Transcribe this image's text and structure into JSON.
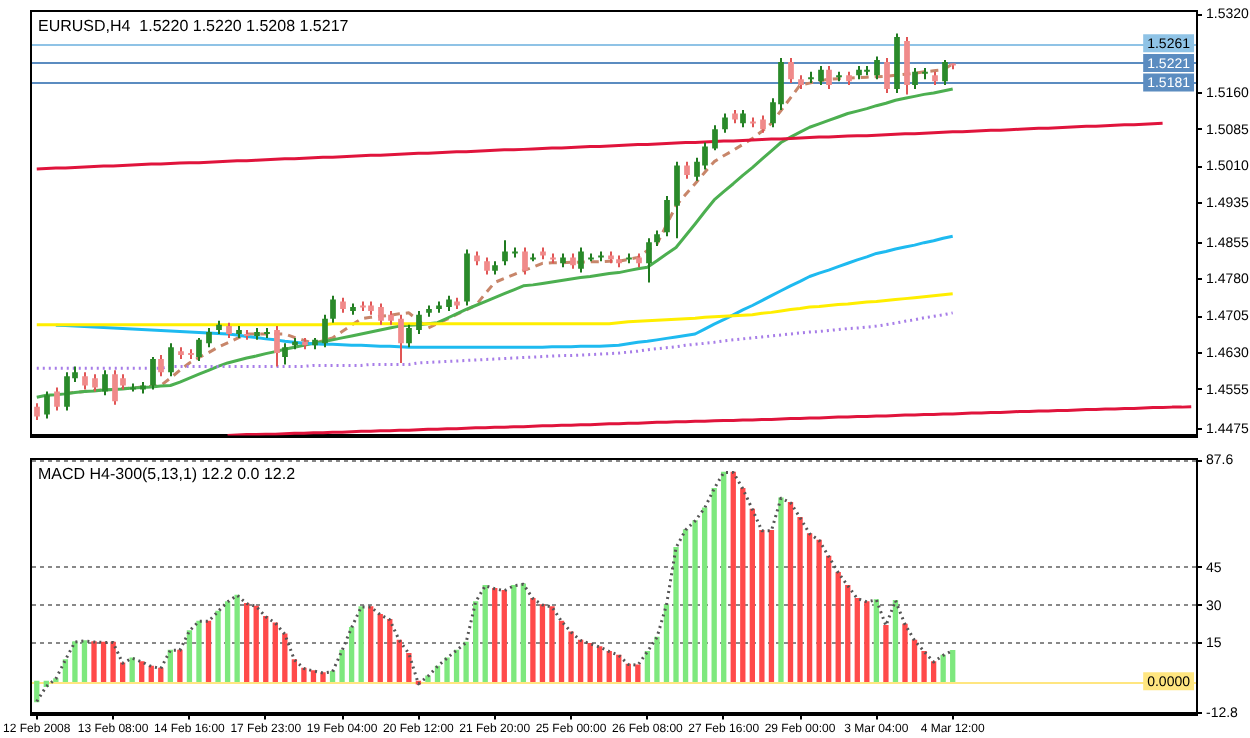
{
  "chart_data": [
    {
      "type": "candlestick",
      "title": "EURUSD,H4  1.5220 1.5220 1.5208 1.5217",
      "categories": [
        null,
        null,
        null,
        null,
        null,
        null,
        null,
        null,
        null,
        null,
        null,
        null,
        null,
        null,
        null,
        null,
        null,
        null,
        null,
        null,
        null,
        null,
        null,
        null,
        null,
        null,
        null,
        null,
        null,
        null,
        null,
        null,
        null,
        null,
        null,
        null,
        null,
        null,
        null,
        null,
        null,
        null,
        null,
        null,
        null,
        null,
        null,
        null,
        null,
        null,
        null,
        null,
        null,
        null,
        null,
        null,
        null,
        null,
        null,
        null,
        null,
        null,
        null,
        null,
        null,
        null,
        null,
        null,
        null,
        null,
        null,
        null,
        null,
        null,
        null,
        null,
        null,
        null,
        null,
        null,
        null,
        null,
        null,
        null,
        null,
        null,
        null,
        null,
        null,
        null,
        null,
        null,
        null,
        null,
        null,
        null,
        null,
        null,
        null,
        null,
        null,
        null,
        null,
        null,
        null,
        null,
        null,
        null,
        null,
        null,
        null,
        null,
        null,
        null,
        null,
        null,
        null,
        null,
        null,
        null,
        null,
        null
      ],
      "ohlc": [
        [
          1.4521,
          1.4528,
          1.4494,
          1.4501
        ],
        [
          1.4505,
          1.4552,
          1.4497,
          1.4544
        ],
        [
          1.4552,
          1.456,
          1.4513,
          1.4521
        ],
        [
          1.4521,
          1.4591,
          1.4513,
          1.4583
        ],
        [
          1.4579,
          1.4603,
          1.4571,
          1.4591
        ],
        [
          1.4583,
          1.4591,
          1.4556,
          1.4564
        ],
        [
          1.4579,
          1.4587,
          1.4552,
          1.456
        ],
        [
          1.4552,
          1.4595,
          1.4544,
          1.4587
        ],
        [
          1.4587,
          1.4595,
          1.4525,
          1.4532
        ],
        [
          1.4579,
          1.4587,
          1.4556,
          1.4564
        ],
        [
          1.456,
          1.4568,
          1.4552,
          1.456
        ],
        [
          1.4556,
          1.4571,
          1.4548,
          1.4564
        ],
        [
          1.4564,
          1.4622,
          1.4556,
          1.4618
        ],
        [
          1.4618,
          1.4626,
          1.4583,
          1.4591
        ],
        [
          1.4591,
          1.465,
          1.4583,
          1.4642
        ],
        [
          1.4634,
          1.4642,
          1.4618,
          1.4626
        ],
        [
          1.463,
          1.4638,
          1.4618,
          1.4626
        ],
        [
          1.4622,
          1.4661,
          1.4614,
          1.4657
        ],
        [
          1.465,
          1.4681,
          1.4642,
          1.4673
        ],
        [
          1.4677,
          1.4696,
          1.4669,
          1.4688
        ],
        [
          1.4685,
          1.4692,
          1.4661,
          1.4669
        ],
        [
          1.4669,
          1.4685,
          1.4661,
          1.4677
        ],
        [
          1.4669,
          1.4677,
          1.4657,
          1.4665
        ],
        [
          1.4665,
          1.4681,
          1.4657,
          1.4673
        ],
        [
          1.4669,
          1.4681,
          1.4661,
          1.4673
        ],
        [
          1.4677,
          1.4685,
          1.4603,
          1.463
        ],
        [
          1.4622,
          1.465,
          1.4607,
          1.4642
        ],
        [
          1.4646,
          1.4661,
          1.4638,
          1.4653
        ],
        [
          1.4653,
          1.4661,
          1.4638,
          1.4646
        ],
        [
          1.4646,
          1.4661,
          1.4638,
          1.4657
        ],
        [
          1.465,
          1.4708,
          1.4642,
          1.47
        ],
        [
          1.47,
          1.4747,
          1.4692,
          1.4739
        ],
        [
          1.4735,
          1.4743,
          1.4712,
          1.472
        ],
        [
          1.4716,
          1.4731,
          1.4708,
          1.4724
        ],
        [
          1.4727,
          1.4735,
          1.4716,
          1.4724
        ],
        [
          1.4727,
          1.4735,
          1.4708,
          1.4716
        ],
        [
          1.4724,
          1.4731,
          1.4688,
          1.4696
        ],
        [
          1.4708,
          1.4716,
          1.4688,
          1.4696
        ],
        [
          1.47,
          1.4708,
          1.461,
          1.465
        ],
        [
          1.465,
          1.4688,
          1.4642,
          1.4681
        ],
        [
          1.4677,
          1.4716,
          1.4669,
          1.4708
        ],
        [
          1.4712,
          1.4727,
          1.4704,
          1.472
        ],
        [
          1.472,
          1.4735,
          1.4712,
          1.4727
        ],
        [
          1.4724,
          1.4747,
          1.4716,
          1.4739
        ],
        [
          1.4735,
          1.4743,
          1.472,
          1.4727
        ],
        [
          1.4735,
          1.4841,
          1.4727,
          1.4833
        ],
        [
          1.4829,
          1.4837,
          1.4809,
          1.4817
        ],
        [
          1.4817,
          1.4825,
          1.479,
          1.4798
        ],
        [
          1.4798,
          1.4817,
          1.479,
          1.4809
        ],
        [
          1.4817,
          1.486,
          1.4809,
          1.4837
        ],
        [
          1.4833,
          1.4845,
          1.4825,
          1.4837
        ],
        [
          1.4837,
          1.4845,
          1.479,
          1.4798
        ],
        [
          1.4825,
          1.4833,
          1.4817,
          1.4825
        ],
        [
          1.4837,
          1.4845,
          1.4821,
          1.4829
        ],
        [
          1.4825,
          1.4833,
          1.4813,
          1.4821
        ],
        [
          1.4813,
          1.4833,
          1.4805,
          1.4825
        ],
        [
          1.4825,
          1.4833,
          1.4802,
          1.4809
        ],
        [
          1.4802,
          1.4845,
          1.4794,
          1.4837
        ],
        [
          1.4825,
          1.4833,
          1.4817,
          1.4825
        ],
        [
          1.4825,
          1.4837,
          1.4817,
          1.4829
        ],
        [
          1.4829,
          1.4837,
          1.4813,
          1.4821
        ],
        [
          1.4821,
          1.4829,
          1.4805,
          1.4813
        ],
        [
          1.4821,
          1.4833,
          1.4813,
          1.4825
        ],
        [
          1.4825,
          1.4833,
          1.4805,
          1.4813
        ],
        [
          1.4813,
          1.4864,
          1.4774,
          1.4856
        ],
        [
          1.4856,
          1.488,
          1.4848,
          1.4872
        ],
        [
          1.4876,
          1.495,
          1.4868,
          1.4942
        ],
        [
          1.493,
          1.502,
          1.4864,
          1.5012
        ],
        [
          1.5012,
          1.502,
          1.4985,
          1.4993
        ],
        [
          1.4989,
          1.5028,
          1.4981,
          1.502
        ],
        [
          1.5012,
          1.5059,
          1.5004,
          1.5051
        ],
        [
          1.5047,
          1.5094,
          1.5043,
          1.5086
        ],
        [
          1.5086,
          1.5118,
          1.5079,
          1.511
        ],
        [
          1.5118,
          1.5125,
          1.5098,
          1.5106
        ],
        [
          1.5098,
          1.5125,
          1.509,
          1.5118
        ],
        [
          1.5102,
          1.511,
          1.509,
          1.5098
        ],
        [
          1.5106,
          1.5114,
          1.5079,
          1.5086
        ],
        [
          1.5098,
          1.5149,
          1.509,
          1.5141
        ],
        [
          1.5137,
          1.5231,
          1.5125,
          1.5223
        ],
        [
          1.5223,
          1.5231,
          1.518,
          1.5188
        ],
        [
          1.5188,
          1.5196,
          1.5168,
          1.5176
        ],
        [
          1.5188,
          1.5203,
          1.518,
          1.5192
        ],
        [
          1.5184,
          1.5215,
          1.5176,
          1.5207
        ],
        [
          1.5207,
          1.5215,
          1.5168,
          1.5176
        ],
        [
          1.5192,
          1.5203,
          1.5184,
          1.5196
        ],
        [
          1.5196,
          1.5203,
          1.5176,
          1.5184
        ],
        [
          1.5196,
          1.5215,
          1.5188,
          1.5207
        ],
        [
          1.5203,
          1.5215,
          1.5196,
          1.5207
        ],
        [
          1.5196,
          1.5234,
          1.5188,
          1.5227
        ],
        [
          1.5223,
          1.5231,
          1.516,
          1.5168
        ],
        [
          1.5168,
          1.5281,
          1.516,
          1.5274
        ],
        [
          1.5266,
          1.5274,
          1.5157,
          1.5176
        ],
        [
          1.5176,
          1.5211,
          1.5168,
          1.5203
        ],
        [
          1.5199,
          1.5211,
          1.5188,
          1.5203
        ],
        [
          1.5196,
          1.5203,
          1.5176,
          1.5184
        ],
        [
          1.5184,
          1.5227,
          1.5176,
          1.5223
        ],
        [
          1.522,
          1.522,
          1.5208,
          1.5217
        ],
        null,
        null,
        null,
        null,
        null,
        null,
        null,
        null,
        null,
        null,
        null,
        null,
        null,
        null,
        null,
        null,
        null,
        null,
        null,
        null,
        null,
        null,
        null,
        null,
        null
      ],
      "series": [
        {
          "type": "line",
          "color": "#ffee00",
          "line_style": "solid",
          "values": [
            1.4688,
            1.4688,
            1.4688,
            1.4688,
            1.4688,
            1.4688,
            1.4688,
            1.4688,
            1.4688,
            1.4688,
            1.4688,
            1.4688,
            1.4688,
            1.4688,
            1.4688,
            1.4688,
            1.4688,
            1.4688,
            1.4688,
            1.4688,
            1.4688,
            1.4688,
            1.4688,
            1.4688,
            1.4688,
            1.4688,
            1.4688,
            1.4688,
            1.4688,
            1.4688,
            1.4688,
            1.469,
            1.469,
            1.469,
            1.469,
            1.469,
            1.469,
            1.469,
            1.469,
            1.469,
            1.469,
            1.469,
            1.469,
            1.469,
            1.469,
            1.469,
            1.469,
            1.469,
            1.469,
            1.469,
            1.469,
            1.469,
            1.469,
            1.469,
            1.469,
            1.469,
            1.469,
            1.469,
            1.469,
            1.469,
            1.469,
            1.4692,
            1.4694,
            1.4695,
            1.4696,
            1.4697,
            1.4698,
            1.4699,
            1.47,
            1.4701,
            1.4703,
            1.4704,
            1.4705,
            1.4706,
            1.4707,
            1.4708,
            1.4711,
            1.4713,
            1.4716,
            1.4719,
            1.4721,
            1.4724,
            1.4725,
            1.4727,
            1.4729,
            1.473,
            1.4732,
            1.4734,
            1.4735,
            1.4737,
            1.4739,
            1.4741,
            1.4743,
            1.4745,
            1.4747,
            1.4749,
            1.4751,
            null,
            null,
            null,
            null,
            null,
            null,
            null,
            null,
            null,
            null,
            null,
            null,
            null,
            null,
            null,
            null,
            null,
            null,
            null,
            null,
            null,
            null,
            null,
            null,
            null
          ]
        },
        {
          "type": "line",
          "color": "#1ebaf0",
          "line_style": "solid",
          "values": [
            null,
            null,
            1.4687,
            1.4686,
            1.4685,
            1.4684,
            1.4683,
            1.4682,
            1.4681,
            1.468,
            1.4679,
            1.4678,
            1.4677,
            1.4676,
            1.4675,
            1.4674,
            1.4673,
            1.4672,
            1.4671,
            1.467,
            1.4669,
            1.4667,
            1.4664,
            1.4662,
            1.4659,
            1.4657,
            1.4654,
            1.4652,
            1.465,
            1.4649,
            1.4648,
            1.4648,
            1.4647,
            1.4646,
            1.4646,
            1.4645,
            1.4644,
            1.4644,
            1.4643,
            1.4642,
            1.4642,
            1.4642,
            1.4642,
            1.4642,
            1.4642,
            1.4642,
            1.4642,
            1.4642,
            1.4642,
            1.4642,
            1.4642,
            1.4642,
            1.4642,
            1.4642,
            1.4643,
            1.4643,
            1.4643,
            1.4644,
            1.4644,
            1.4644,
            1.4645,
            1.4646,
            1.4649,
            1.4652,
            1.4654,
            1.4657,
            1.466,
            1.4663,
            1.4666,
            1.4669,
            1.4679,
            1.4689,
            1.4698,
            1.4708,
            1.4718,
            1.4727,
            1.4737,
            1.4747,
            1.4757,
            1.4767,
            1.4776,
            1.4786,
            1.4793,
            1.4799,
            1.4806,
            1.4813,
            1.482,
            1.4826,
            1.4833,
            1.4837,
            1.4842,
            1.4846,
            1.485,
            1.4855,
            1.4859,
            1.4864,
            1.4868,
            null,
            null,
            null,
            null,
            null,
            null,
            null,
            null,
            null,
            null,
            null,
            null,
            null,
            null,
            null,
            null,
            null,
            null,
            null,
            null,
            null,
            null,
            null,
            null,
            null
          ]
        },
        {
          "type": "line",
          "color": "#a77de8",
          "line_style": "dotted",
          "values": [
            1.4599,
            1.4599,
            1.4599,
            1.4599,
            1.4599,
            1.4599,
            1.4599,
            1.4599,
            1.4599,
            1.4599,
            1.4599,
            1.4599,
            1.4599,
            1.4599,
            1.4603,
            1.4603,
            1.4603,
            1.4603,
            1.4603,
            1.4603,
            1.4603,
            1.4603,
            1.4603,
            1.4603,
            1.4603,
            1.4603,
            1.4603,
            1.4603,
            1.4603,
            1.4605,
            1.4605,
            1.4605,
            1.4605,
            1.4605,
            1.4605,
            1.4607,
            1.4607,
            1.4607,
            1.4607,
            1.4607,
            1.461,
            1.4611,
            1.4612,
            1.4613,
            1.4614,
            1.4615,
            1.4616,
            1.4617,
            1.4618,
            1.4619,
            1.462,
            1.4621,
            1.4622,
            1.4623,
            1.4624,
            1.4625,
            1.4625,
            1.4626,
            1.4627,
            1.4628,
            1.4629,
            1.463,
            1.4632,
            1.4634,
            1.4637,
            1.4639,
            1.4641,
            1.4643,
            1.4646,
            1.4648,
            1.465,
            1.4652,
            1.4655,
            1.4657,
            1.4659,
            1.4661,
            1.4663,
            1.4665,
            1.4667,
            1.4669,
            1.4671,
            1.4673,
            1.4674,
            1.4676,
            1.4678,
            1.468,
            1.4681,
            1.4683,
            1.4685,
            1.4688,
            1.4691,
            1.4695,
            1.4698,
            1.4702,
            1.4705,
            1.4708,
            1.4712,
            null,
            null,
            null,
            null,
            null,
            null,
            null,
            null,
            null,
            null,
            null,
            null,
            null,
            null,
            null,
            null,
            null,
            null,
            null,
            null,
            null,
            null,
            null,
            null,
            null
          ]
        },
        {
          "type": "line",
          "color": "#e0143c",
          "line_style": "solid",
          "values": [
            1.5005,
            1.5006,
            1.5007,
            1.5007,
            1.5008,
            1.5009,
            1.501,
            1.5011,
            1.5011,
            1.5012,
            1.5013,
            1.5014,
            1.5015,
            1.5015,
            1.5016,
            1.5017,
            1.5018,
            1.5018,
            1.5019,
            1.502,
            1.5021,
            1.5022,
            1.5022,
            1.5023,
            1.5024,
            1.5025,
            1.5026,
            1.5026,
            1.5027,
            1.5028,
            1.5029,
            1.5029,
            1.503,
            1.5031,
            1.5032,
            1.5033,
            1.5033,
            1.5034,
            1.5035,
            1.5036,
            1.5037,
            1.5037,
            1.5038,
            1.5039,
            1.504,
            1.504,
            1.5041,
            1.5042,
            1.5043,
            1.5044,
            1.5044,
            1.5045,
            1.5046,
            1.5047,
            1.5048,
            1.5048,
            1.5049,
            1.505,
            1.5051,
            1.5051,
            1.5052,
            1.5053,
            1.5054,
            1.5055,
            1.5055,
            1.5056,
            1.5057,
            1.5058,
            1.5059,
            1.5059,
            1.506,
            1.5061,
            1.5062,
            1.5062,
            1.5063,
            1.5064,
            1.5065,
            1.5066,
            1.5066,
            1.5067,
            1.5068,
            1.5069,
            1.507,
            1.507,
            1.5071,
            1.5072,
            1.5073,
            1.5073,
            1.5074,
            1.5075,
            1.5076,
            1.5077,
            1.5077,
            1.5078,
            1.5079,
            1.508,
            1.5081,
            1.5081,
            1.5082,
            1.5083,
            1.5084,
            1.5084,
            1.5085,
            1.5086,
            1.5087,
            1.5088,
            1.5088,
            1.5089,
            1.509,
            1.5091,
            1.5092,
            1.5092,
            1.5093,
            1.5094,
            1.5095,
            1.5095,
            1.5096,
            1.5097,
            1.5098,
            null,
            null,
            null
          ]
        },
        {
          "type": "line",
          "color": "#e0143c",
          "line_style": "solid",
          "values": [
            null,
            null,
            null,
            null,
            null,
            null,
            null,
            null,
            null,
            null,
            null,
            null,
            null,
            null,
            null,
            null,
            null,
            null,
            null,
            null,
            1.4462,
            1.4463,
            1.4464,
            1.4464,
            1.4465,
            1.4465,
            1.4466,
            1.4467,
            1.4467,
            1.4468,
            1.4468,
            1.4469,
            1.4469,
            1.447,
            1.4471,
            1.4471,
            1.4472,
            1.4472,
            1.4473,
            1.4473,
            1.4474,
            1.4475,
            1.4475,
            1.4476,
            1.4476,
            1.4477,
            1.4478,
            1.4478,
            1.4479,
            1.4479,
            1.448,
            1.448,
            1.4481,
            1.4482,
            1.4482,
            1.4483,
            1.4483,
            1.4484,
            1.4484,
            1.4485,
            1.4486,
            1.4486,
            1.4487,
            1.4487,
            1.4488,
            1.4489,
            1.4489,
            1.449,
            1.449,
            1.4491,
            1.4491,
            1.4492,
            1.4493,
            1.4493,
            1.4494,
            1.4494,
            1.4495,
            1.4495,
            1.4496,
            1.4497,
            1.4497,
            1.4498,
            1.4498,
            1.4499,
            1.45,
            1.45,
            1.4501,
            1.4501,
            1.4502,
            1.4502,
            1.4503,
            1.4504,
            1.4504,
            1.4505,
            1.4505,
            1.4506,
            1.4506,
            1.4507,
            1.4508,
            1.4508,
            1.4509,
            1.4509,
            1.451,
            1.4511,
            1.4511,
            1.4512,
            1.4512,
            1.4513,
            1.4513,
            1.4514,
            1.4515,
            1.4515,
            1.4516,
            1.4516,
            1.4517,
            1.4517,
            1.4518,
            1.4519,
            1.4519,
            1.452,
            1.452,
            1.4521
          ]
        },
        {
          "type": "line",
          "color": "#4caf50",
          "line_style": "solid",
          "values": [
            1.454,
            1.4544,
            1.4545,
            1.4547,
            1.455,
            1.4552,
            1.4553,
            1.4555,
            1.4556,
            1.4557,
            1.4559,
            1.456,
            1.4561,
            1.4563,
            1.4564,
            1.4571,
            1.4579,
            1.4587,
            1.4595,
            1.4603,
            1.461,
            1.4615,
            1.462,
            1.4624,
            1.4629,
            1.4633,
            1.4638,
            1.4642,
            1.4646,
            1.465,
            1.4653,
            1.4657,
            1.4661,
            1.4665,
            1.4669,
            1.4673,
            1.4677,
            1.4681,
            1.4685,
            1.4687,
            1.4688,
            1.469,
            1.4692,
            1.4701,
            1.471,
            1.4719,
            1.4727,
            1.4735,
            1.4743,
            1.4751,
            1.4759,
            1.4767,
            1.4769,
            1.4772,
            1.4775,
            1.4778,
            1.4781,
            1.4784,
            1.4786,
            1.4789,
            1.4792,
            1.4794,
            1.4798,
            1.4802,
            1.4805,
            1.4818,
            1.4832,
            1.4845,
            1.4869,
            1.4893,
            1.4918,
            1.4942,
            1.4959,
            1.4975,
            1.4992,
            1.5008,
            1.5025,
            1.5042,
            1.5059,
            1.507,
            1.508,
            1.509,
            1.5097,
            1.5104,
            1.5111,
            1.5118,
            1.5123,
            1.5128,
            1.5134,
            1.5139,
            1.5145,
            1.5149,
            1.5153,
            1.5157,
            1.516,
            1.5164,
            1.5168,
            null,
            null,
            null,
            null,
            null,
            null,
            null,
            null,
            null,
            null,
            null,
            null,
            null,
            null,
            null,
            null,
            null,
            null,
            null,
            null,
            null,
            null,
            null,
            null,
            null
          ]
        },
        {
          "type": "line",
          "color": "#c8866a",
          "line_style": "dashed",
          "values": [
            null,
            null,
            null,
            1.4548,
            1.455,
            1.4552,
            1.4554,
            1.4555,
            1.4556,
            1.4558,
            1.4559,
            1.4561,
            1.4562,
            1.4564,
            1.4579,
            1.4595,
            1.461,
            1.4621,
            1.4631,
            1.4642,
            1.4651,
            1.466,
            1.4669,
            1.4669,
            1.4669,
            1.4669,
            1.4669,
            1.4662,
            1.4656,
            1.465,
            1.4655,
            1.4661,
            1.4674,
            1.4687,
            1.47,
            1.4703,
            1.4705,
            1.4707,
            1.471,
            1.4712,
            1.4696,
            1.4681,
            1.469,
            1.4699,
            1.4709,
            1.4718,
            1.4727,
            1.4751,
            1.4774,
            1.4782,
            1.479,
            1.4798,
            1.4805,
            1.4813,
            1.4814,
            1.4814,
            1.4815,
            1.4815,
            1.4816,
            1.4816,
            1.4817,
            1.4817,
            1.4821,
            1.4825,
            1.4839,
            1.4852,
            1.4891,
            1.493,
            1.4953,
            1.4975,
            1.4998,
            1.502,
            1.5032,
            1.5043,
            1.5055,
            1.5067,
            1.5082,
            1.5098,
            1.5124,
            1.515,
            1.5176,
            1.518,
            1.5184,
            1.5188,
            1.5189,
            1.519,
            1.5191,
            1.5192,
            1.5193,
            1.5194,
            1.5196,
            1.5198,
            1.52,
            1.5203,
            1.5205,
            1.5207,
            1.5219,
            null,
            null,
            null,
            null,
            null,
            null,
            null,
            null,
            null,
            null,
            null,
            null,
            null,
            null,
            null,
            null,
            null,
            null,
            null,
            null,
            null,
            null,
            null,
            null,
            null
          ]
        }
      ],
      "ylim": [
        1.4462,
        1.5324
      ],
      "yticks": [
        {
          "value": 1.532,
          "label": "1.5320"
        },
        {
          "value": 1.516,
          "label": "1.5160"
        },
        1.5085,
        {
          "value": 1.501,
          "label": "1.5010"
        },
        1.4935,
        1.4855,
        {
          "value": 1.478,
          "label": "1.4780"
        },
        1.4705,
        {
          "value": 1.463,
          "label": "1.4630"
        },
        1.4555,
        1.4475
      ],
      "ref_lines": [
        {
          "axis": "y",
          "value": 1.5261,
          "label": "1.5261",
          "color": "#8fc3e6"
        },
        {
          "axis": "y",
          "value": 1.5221,
          "label": "1.5221",
          "color": "#5b8cc0"
        },
        {
          "axis": "y",
          "value": 1.5181,
          "label": "1.5181",
          "color": "#5b8cc0"
        }
      ],
      "tick_labels": "y"
    },
    {
      "type": "bar",
      "title": "MACD H4-300(5,13,1) 12.2 0.0 12.2",
      "categories": [
        "12 Feb 2008",
        null,
        null,
        null,
        null,
        null,
        null,
        null,
        "13 Feb 08:00",
        null,
        null,
        null,
        null,
        null,
        null,
        null,
        "14 Feb 16:00",
        null,
        null,
        null,
        null,
        null,
        null,
        null,
        "17 Feb 23:00",
        null,
        null,
        null,
        null,
        null,
        null,
        null,
        "19 Feb 04:00",
        null,
        null,
        null,
        null,
        null,
        null,
        null,
        "20 Feb 12:00",
        null,
        null,
        null,
        null,
        null,
        null,
        null,
        "21 Feb 20:00",
        null,
        null,
        null,
        null,
        null,
        null,
        null,
        "25 Feb 00:00",
        null,
        null,
        null,
        null,
        null,
        null,
        null,
        "26 Feb 08:00",
        null,
        null,
        null,
        null,
        null,
        null,
        null,
        "27 Feb 16:00",
        null,
        null,
        null,
        null,
        null,
        null,
        null,
        "29 Feb 00:00",
        null,
        null,
        null,
        null,
        null,
        null,
        null,
        "3 Mar 04:00",
        null,
        null,
        null,
        null,
        null,
        null,
        null,
        "4 Mar 12:00",
        null,
        null,
        null,
        null,
        null,
        null,
        null,
        null,
        null,
        null,
        null,
        null,
        null,
        null,
        null,
        null,
        null,
        null,
        null,
        null,
        null,
        null,
        null,
        null,
        null
      ],
      "series": [
        {
          "type": "bar",
          "values": [
            -8,
            -2,
            1,
            8.5,
            15.6,
            16,
            15.6,
            15.4,
            15.4,
            7.2,
            9.2,
            7.7,
            5.9,
            5.1,
            12.3,
            12.3,
            20,
            23.8,
            23.8,
            27.7,
            31.5,
            34.1,
            30.8,
            29.7,
            25.6,
            23.1,
            18.7,
            8.5,
            5.1,
            4.1,
            3.3,
            3.8,
            12.3,
            21.3,
            29.5,
            29.5,
            26.4,
            24.4,
            16.2,
            11,
            -1,
            2,
            5.9,
            9.2,
            12.3,
            15.4,
            31.5,
            37.9,
            36.7,
            35.9,
            37.9,
            38.5,
            32.8,
            30.3,
            29.5,
            23.8,
            19.5,
            16.2,
            14.9,
            13.6,
            11.8,
            10.3,
            6.7,
            6.4,
            11.8,
            17.4,
            30.3,
            53,
            60,
            63.6,
            68.7,
            76.4,
            82.8,
            82.8,
            76.4,
            68.2,
            59.7,
            59.7,
            72.6,
            70.8,
            64.9,
            58.5,
            55.9,
            49.5,
            43.1,
            37.9,
            32.8,
            31.5,
            32.3,
            22.1,
            32,
            22.6,
            16.2,
            11.8,
            7.7,
            10.3,
            12.2,
            null,
            null,
            null,
            null,
            null,
            null,
            null,
            null,
            null,
            null,
            null,
            null,
            null,
            null,
            null,
            null,
            null,
            null,
            null,
            null,
            null,
            null,
            null,
            null,
            null
          ],
          "colors": [
            "#7ee87e",
            "#7ee87e",
            "#7ee87e",
            "#7ee87e",
            "#7ee87e",
            "#7ee87e",
            "#ff4a4a",
            "#ff4a4a",
            "#ff4a4a",
            "#ff4a4a",
            "#7ee87e",
            "#ff4a4a",
            "#ff4a4a",
            "#ff4a4a",
            "#7ee87e",
            "#ff4a4a",
            "#7ee87e",
            "#7ee87e",
            "#ff4a4a",
            "#7ee87e",
            "#7ee87e",
            "#7ee87e",
            "#ff4a4a",
            "#ff4a4a",
            "#ff4a4a",
            "#ff4a4a",
            "#ff4a4a",
            "#ff4a4a",
            "#ff4a4a",
            "#ff4a4a",
            "#ff4a4a",
            "#7ee87e",
            "#7ee87e",
            "#7ee87e",
            "#7ee87e",
            "#ff4a4a",
            "#ff4a4a",
            "#ff4a4a",
            "#ff4a4a",
            "#ff4a4a",
            "#ff4a4a",
            "#7ee87e",
            "#7ee87e",
            "#7ee87e",
            "#7ee87e",
            "#7ee87e",
            "#7ee87e",
            "#7ee87e",
            "#ff4a4a",
            "#ff4a4a",
            "#7ee87e",
            "#7ee87e",
            "#ff4a4a",
            "#ff4a4a",
            "#ff4a4a",
            "#ff4a4a",
            "#ff4a4a",
            "#ff4a4a",
            "#ff4a4a",
            "#ff4a4a",
            "#ff4a4a",
            "#ff4a4a",
            "#ff4a4a",
            "#ff4a4a",
            "#7ee87e",
            "#7ee87e",
            "#7ee87e",
            "#7ee87e",
            "#7ee87e",
            "#7ee87e",
            "#7ee87e",
            "#7ee87e",
            "#7ee87e",
            "#ff4a4a",
            "#ff4a4a",
            "#ff4a4a",
            "#ff4a4a",
            "#ff4a4a",
            "#7ee87e",
            "#ff4a4a",
            "#ff4a4a",
            "#ff4a4a",
            "#ff4a4a",
            "#ff4a4a",
            "#ff4a4a",
            "#ff4a4a",
            "#ff4a4a",
            "#ff4a4a",
            "#7ee87e",
            "#ff4a4a",
            "#7ee87e",
            "#ff4a4a",
            "#ff4a4a",
            "#ff4a4a",
            "#ff4a4a",
            "#7ee87e",
            "#7ee87e",
            null,
            null,
            null,
            null,
            null,
            null,
            null,
            null,
            null,
            null,
            null,
            null,
            null,
            null,
            null,
            null,
            null,
            null,
            null,
            null,
            null,
            null,
            null,
            null,
            null
          ]
        },
        {
          "type": "line",
          "color": "#555555",
          "line_style": "dotted",
          "values": [
            -8,
            -2,
            1,
            8.5,
            15.6,
            16,
            15.6,
            15.4,
            15.4,
            7.2,
            9.2,
            7.7,
            5.9,
            5.1,
            12.3,
            12.3,
            20,
            23.8,
            23.8,
            27.7,
            31.5,
            34.1,
            30.8,
            29.7,
            25.6,
            23.1,
            18.7,
            8.5,
            5.1,
            4.1,
            3.3,
            3.8,
            12.3,
            21.3,
            29.5,
            29.5,
            26.4,
            24.4,
            16.2,
            11,
            -1,
            2,
            5.9,
            9.2,
            12.3,
            15.4,
            31.5,
            37.9,
            36.7,
            35.9,
            37.9,
            38.5,
            32.8,
            30.3,
            29.5,
            23.8,
            19.5,
            16.2,
            14.9,
            13.6,
            11.8,
            10.3,
            6.7,
            6.4,
            11.8,
            17.4,
            30.3,
            53,
            60,
            63.6,
            68.7,
            76.4,
            82.8,
            82.8,
            76.4,
            68.2,
            59.7,
            59.7,
            72.6,
            70.8,
            64.9,
            58.5,
            55.9,
            49.5,
            43.1,
            37.9,
            32.8,
            31.5,
            32.3,
            22.1,
            32,
            22.6,
            16.2,
            11.8,
            7.7,
            10.3,
            12.2,
            null,
            null,
            null,
            null,
            null,
            null,
            null,
            null,
            null,
            null,
            null,
            null,
            null,
            null,
            null,
            null,
            null,
            null,
            null,
            null,
            null,
            null,
            null,
            null,
            null
          ]
        }
      ],
      "ylim": [
        -12.8,
        87.6
      ],
      "yticks": [
        87.6,
        45,
        30,
        15,
        -12.8
      ],
      "grid": "y",
      "ref_lines": [
        {
          "axis": "y",
          "value": 0,
          "label": "0.0000",
          "color": "#ffe680"
        }
      ]
    }
  ]
}
